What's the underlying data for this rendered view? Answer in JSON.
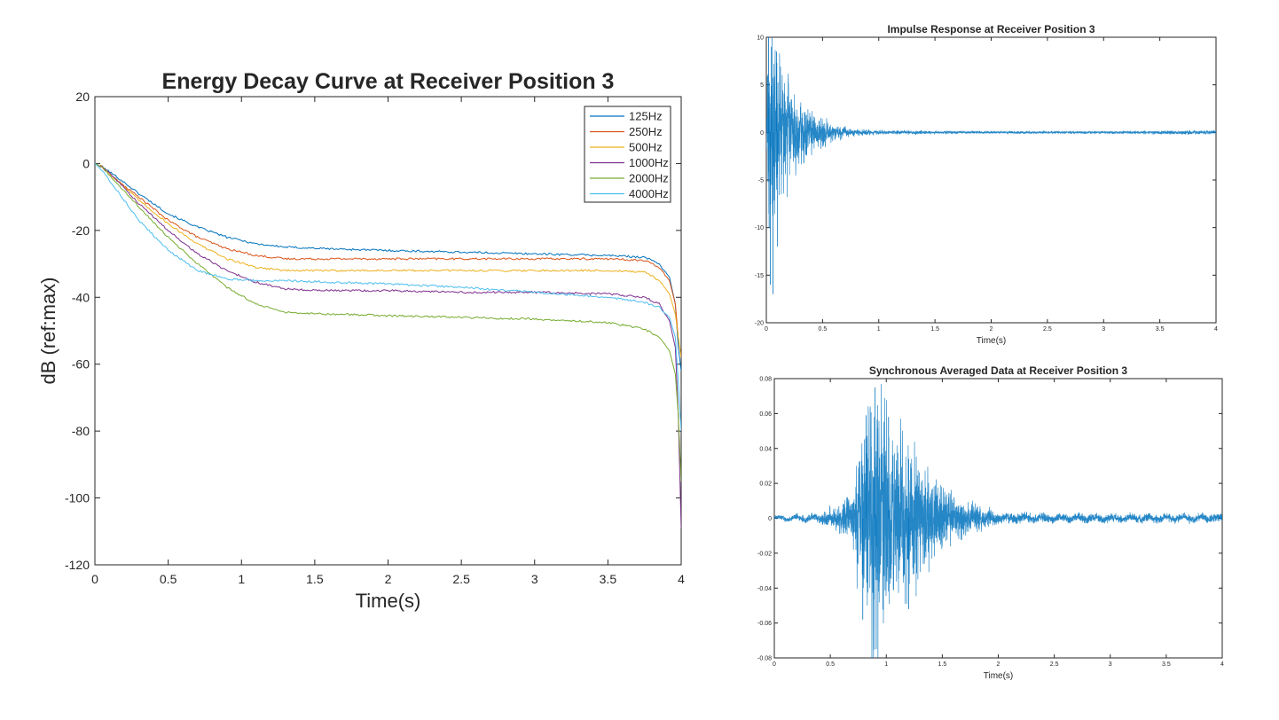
{
  "chart_data": [
    {
      "type": "line",
      "title": "Energy Decay Curve at Receiver Position 3",
      "xlabel": "Time(s)",
      "ylabel": "dB (ref:max)",
      "xlim": [
        0,
        4
      ],
      "ylim": [
        -120,
        20
      ],
      "xticks": [
        0,
        0.5,
        1,
        1.5,
        2,
        2.5,
        3,
        3.5,
        4
      ],
      "xtick_labels": [
        "0",
        "0.5",
        "1",
        "1.5",
        "2",
        "2.5",
        "3",
        "3.5",
        "4"
      ],
      "yticks": [
        -120,
        -100,
        -80,
        -60,
        -40,
        -20,
        0,
        20
      ],
      "ytick_labels": [
        "-120",
        "-100",
        "-80",
        "-60",
        "-40",
        "-20",
        "0",
        "20"
      ],
      "grid": false,
      "legend": "top-right",
      "series": [
        {
          "name": "125Hz",
          "color": "#0072bd",
          "x": [
            0,
            0.05,
            0.15,
            0.3,
            0.5,
            0.7,
            0.9,
            1.1,
            1.3,
            1.6,
            2.0,
            2.5,
            3.0,
            3.5,
            3.75,
            3.85,
            3.92,
            3.96,
            3.98,
            4.0
          ],
          "y": [
            0,
            -1,
            -4,
            -9,
            -15,
            -19,
            -22,
            -24,
            -25,
            -25.5,
            -26,
            -26.5,
            -27,
            -27.5,
            -28,
            -30,
            -34,
            -42,
            -55,
            -62
          ]
        },
        {
          "name": "250Hz",
          "color": "#d95319",
          "x": [
            0,
            0.05,
            0.15,
            0.3,
            0.5,
            0.7,
            0.9,
            1.1,
            1.3,
            1.6,
            2.0,
            2.5,
            3.0,
            3.5,
            3.75,
            3.85,
            3.92,
            3.96,
            3.98,
            4.0
          ],
          "y": [
            0,
            -1,
            -5,
            -10,
            -17,
            -22,
            -25.5,
            -27.5,
            -28.5,
            -28.5,
            -28.5,
            -28.5,
            -28.5,
            -28.5,
            -29,
            -31,
            -35,
            -42,
            -52,
            -58
          ]
        },
        {
          "name": "500Hz",
          "color": "#edb120",
          "x": [
            0,
            0.05,
            0.15,
            0.3,
            0.5,
            0.7,
            0.9,
            1.1,
            1.3,
            1.6,
            2.0,
            2.5,
            3.0,
            3.5,
            3.75,
            3.85,
            3.92,
            3.96,
            3.98,
            4.0
          ],
          "y": [
            0,
            -1,
            -5,
            -11,
            -18,
            -24,
            -28.5,
            -31,
            -32,
            -32,
            -32,
            -32,
            -32,
            -32,
            -32.5,
            -35,
            -39,
            -45,
            -52,
            -58
          ]
        },
        {
          "name": "1000Hz",
          "color": "#7e2f8e",
          "x": [
            0,
            0.05,
            0.15,
            0.3,
            0.5,
            0.7,
            0.9,
            1.1,
            1.3,
            1.6,
            2.0,
            2.5,
            3.0,
            3.5,
            3.75,
            3.85,
            3.92,
            3.96,
            3.98,
            4.0
          ],
          "y": [
            0,
            -1,
            -5,
            -12,
            -20,
            -27,
            -32,
            -35.5,
            -37.5,
            -38,
            -38,
            -38.5,
            -38.5,
            -39,
            -40,
            -42,
            -47,
            -55,
            -75,
            -109
          ]
        },
        {
          "name": "2000Hz",
          "color": "#77ac30",
          "x": [
            0,
            0.05,
            0.15,
            0.3,
            0.5,
            0.7,
            0.9,
            1.1,
            1.3,
            1.6,
            2.0,
            2.5,
            3.0,
            3.5,
            3.75,
            3.85,
            3.92,
            3.96,
            3.98,
            4.0
          ],
          "y": [
            0,
            -1,
            -6,
            -13,
            -22,
            -30,
            -37,
            -42,
            -44.5,
            -45,
            -45.5,
            -46,
            -46.5,
            -47.5,
            -49.5,
            -52,
            -56,
            -63,
            -75,
            -95
          ]
        },
        {
          "name": "4000Hz",
          "color": "#4dbeee",
          "x": [
            0,
            0.05,
            0.15,
            0.3,
            0.5,
            0.7,
            0.9,
            1.1,
            1.3,
            1.6,
            2.0,
            2.5,
            3.0,
            3.5,
            3.75,
            3.85,
            3.92,
            3.96,
            3.98,
            4.0
          ],
          "y": [
            0,
            -2,
            -8,
            -17,
            -26,
            -32,
            -34.5,
            -35,
            -35,
            -35.5,
            -36,
            -37,
            -38.5,
            -40,
            -41.5,
            -43,
            -46,
            -52,
            -65,
            -80
          ]
        }
      ]
    },
    {
      "type": "line",
      "title": "Impulse Response at Receiver Position 3",
      "xlabel": "Time(s)",
      "ylabel": "",
      "xlim": [
        0,
        4
      ],
      "ylim": [
        -20,
        10
      ],
      "xticks": [
        0,
        0.5,
        1,
        1.5,
        2,
        2.5,
        3,
        3.5,
        4
      ],
      "xtick_labels": [
        "0",
        "0.5",
        "1",
        "1.5",
        "2",
        "2.5",
        "3",
        "3.5",
        "4"
      ],
      "yticks": [
        -20,
        -15,
        -10,
        -5,
        0,
        5,
        10
      ],
      "ytick_labels": [
        "-20",
        "-15",
        "-10",
        "-5",
        "0",
        "5",
        "10"
      ],
      "grid": false,
      "series": [
        {
          "name": "impulse response",
          "color": "#0072bd",
          "envelope": {
            "t": [
              0,
              0.03,
              0.05,
              0.1,
              0.2,
              0.3,
              0.4,
              0.5,
              0.6,
              0.7,
              0.8,
              1.0,
              1.5,
              2.0,
              3.0,
              3.7,
              4.0
            ],
            "amp": [
              2,
              10,
              12,
              7,
              4.5,
              3,
              2,
              1.4,
              0.8,
              0.5,
              0.3,
              0.2,
              0.15,
              0.12,
              0.12,
              0.18,
              0.18
            ]
          }
        }
      ]
    },
    {
      "type": "line",
      "title": "Synchronous Averaged Data at Receiver Position 3",
      "xlabel": "Time(s)",
      "ylabel": "",
      "xlim": [
        0,
        4
      ],
      "ylim": [
        -0.08,
        0.08
      ],
      "xticks": [
        0,
        0.5,
        1,
        1.5,
        2,
        2.5,
        3,
        3.5,
        4
      ],
      "xtick_labels": [
        "0",
        "0.5",
        "1",
        "1.5",
        "2",
        "2.5",
        "3",
        "3.5",
        "4"
      ],
      "yticks": [
        -0.08,
        -0.06,
        -0.04,
        -0.02,
        0,
        0.02,
        0.04,
        0.06,
        0.08
      ],
      "ytick_labels": [
        "-0.08",
        "-0.06",
        "-0.04",
        "-0.02",
        "0",
        "0.02",
        "0.04",
        "0.06",
        "0.08"
      ],
      "grid": false,
      "series": [
        {
          "name": "averaged data",
          "color": "#0072bd",
          "envelope": {
            "t": [
              0,
              0.4,
              0.55,
              0.7,
              0.75,
              0.8,
              0.85,
              0.9,
              1.0,
              1.1,
              1.2,
              1.3,
              1.4,
              1.6,
              1.8,
              2.0,
              2.5,
              3.0,
              3.5,
              4.0
            ],
            "amp": [
              0.001,
              0.002,
              0.006,
              0.012,
              0.03,
              0.05,
              0.06,
              0.07,
              0.055,
              0.045,
              0.038,
              0.03,
              0.022,
              0.012,
              0.006,
              0.003,
              0.002,
              0.002,
              0.002,
              0.002
            ]
          }
        }
      ]
    }
  ]
}
